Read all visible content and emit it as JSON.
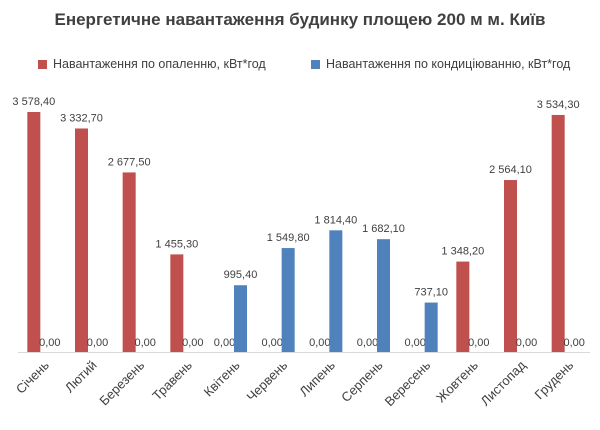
{
  "chart_data": {
    "type": "bar",
    "title": "Енергетичне навантаження будинку площею 200 м   м. Київ",
    "categories": [
      "Січень",
      "Лютий",
      "Березень",
      "Травень",
      "Квітень",
      "Червень",
      "Липень",
      "Серпень",
      "Вересень",
      "Жовтень",
      "Листопад",
      "Грудень"
    ],
    "series": [
      {
        "name": "Навантаження по опаленню, кВт*год",
        "color": "#c0504d",
        "values": [
          3578.4,
          3332.7,
          2677.5,
          1455.3,
          0,
          0,
          0,
          0,
          0,
          1348.2,
          2564.1,
          3534.3
        ],
        "labels": [
          "3 578,40",
          "3 332,70",
          "2 677,50",
          "1 455,30",
          "0,00",
          "0,00",
          "0,00",
          "0,00",
          "0,00",
          "1 348,20",
          "2 564,10",
          "3 534,30"
        ]
      },
      {
        "name": "Навантаження по кондиціюванню, кВт*год",
        "color": "#4f81bd",
        "values": [
          0,
          0,
          0,
          0,
          995.4,
          1549.8,
          1814.4,
          1682.1,
          737.1,
          0,
          0,
          0
        ],
        "labels": [
          "0,00",
          "0,00",
          "0,00",
          "0,00",
          "995,40",
          "1 549,80",
          "1 814,40",
          "1 682,10",
          "737,10",
          "0,00",
          "0,00",
          "0,00"
        ]
      }
    ],
    "ylim": [
      0,
      3578.4
    ],
    "grid": false,
    "legend": "top"
  }
}
